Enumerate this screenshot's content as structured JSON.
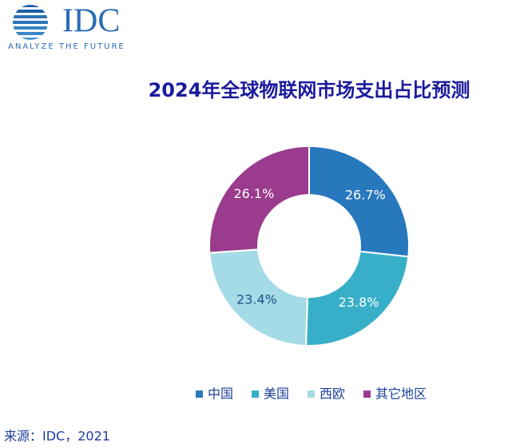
{
  "logo": {
    "name": "IDC",
    "tagline": "ANALYZE THE FUTURE"
  },
  "chart_data": {
    "type": "donut",
    "title": "2024年全球物联网市场支出占比预测",
    "categories": [
      "中国",
      "美国",
      "西欧",
      "其它地区"
    ],
    "values": [
      26.7,
      23.8,
      23.4,
      26.1
    ],
    "value_labels": [
      "26.7%",
      "23.8%",
      "23.4%",
      "26.1%"
    ],
    "colors": [
      "#2878be",
      "#38afc9",
      "#a5dbe6",
      "#9a3b8d"
    ],
    "legend": "bottom"
  },
  "source": "来源：IDC，2021"
}
